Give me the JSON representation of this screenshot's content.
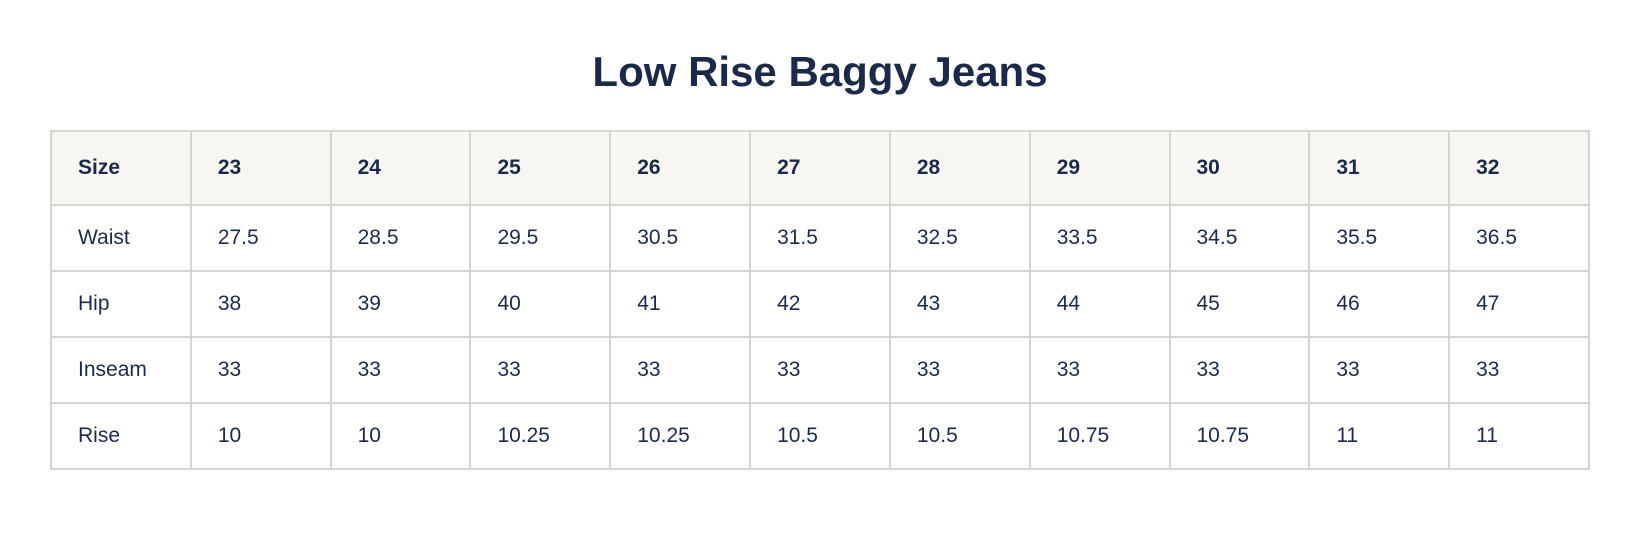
{
  "title": "Low Rise Baggy Jeans",
  "table": {
    "header_label": "Size",
    "sizes": [
      "23",
      "24",
      "25",
      "26",
      "27",
      "28",
      "29",
      "30",
      "31",
      "32"
    ],
    "rows": [
      {
        "label": "Waist",
        "values": [
          "27.5",
          "28.5",
          "29.5",
          "30.5",
          "31.5",
          "32.5",
          "33.5",
          "34.5",
          "35.5",
          "36.5"
        ]
      },
      {
        "label": "Hip",
        "values": [
          "38",
          "39",
          "40",
          "41",
          "42",
          "43",
          "44",
          "45",
          "46",
          "47"
        ]
      },
      {
        "label": "Inseam",
        "values": [
          "33",
          "33",
          "33",
          "33",
          "33",
          "33",
          "33",
          "33",
          "33",
          "33"
        ]
      },
      {
        "label": "Rise",
        "values": [
          "10",
          "10",
          "10.25",
          "10.25",
          "10.5",
          "10.5",
          "10.75",
          "10.75",
          "11",
          "11"
        ]
      }
    ]
  },
  "colors": {
    "text": "#1c2a4a",
    "header_background": "#f8f6f2",
    "border": "#d6d4d0"
  }
}
